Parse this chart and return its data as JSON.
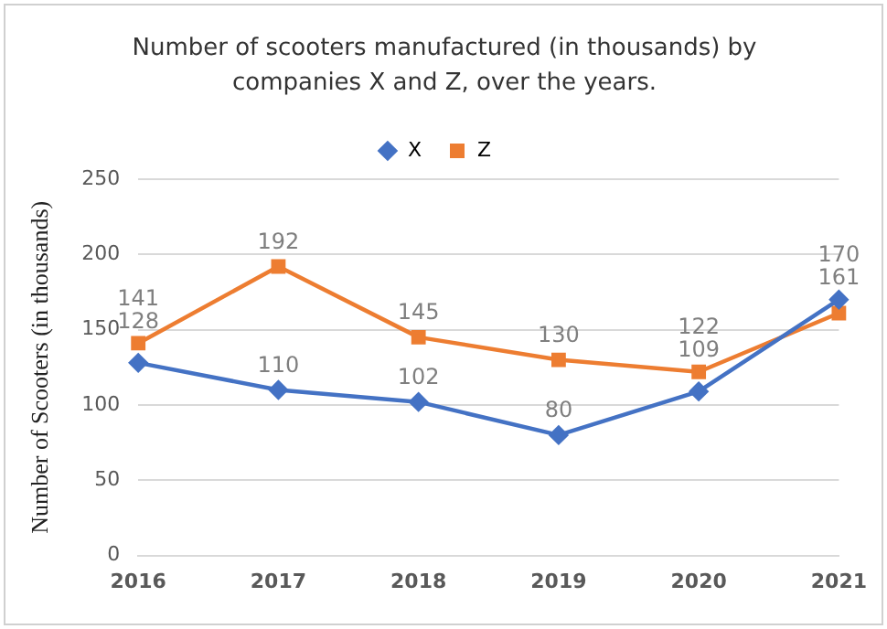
{
  "chart_data": {
    "type": "line",
    "title": "Number of scooters manufactured (in thousands) by companies X and Z, over the years.",
    "ylabel": "Number of Scooters (in thousands)",
    "categories": [
      "2016",
      "2017",
      "2018",
      "2019",
      "2020",
      "2021"
    ],
    "series": [
      {
        "name": "X",
        "color": "#4472c4",
        "marker": "diamond",
        "values": [
          128,
          110,
          102,
          80,
          109,
          170
        ]
      },
      {
        "name": "Z",
        "color": "#ed7d31",
        "marker": "square",
        "values": [
          141,
          192,
          145,
          130,
          122,
          161
        ]
      }
    ],
    "ylim": [
      0,
      250
    ],
    "yticks": [
      0,
      50,
      100,
      150,
      200,
      250
    ],
    "grid": "y",
    "legend": "top",
    "data_labels": true,
    "line_style": "solid"
  }
}
